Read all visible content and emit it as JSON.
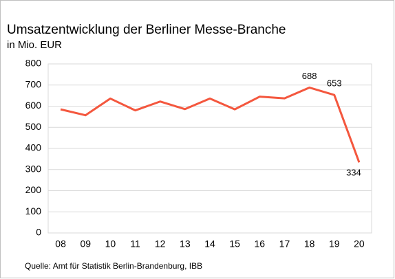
{
  "chart_data": {
    "type": "line",
    "title": "Umsatzentwicklung der Berliner Messe-Branche",
    "subtitle": "in Mio. EUR",
    "source": "Quelle: Amt für Statistik Berlin-Brandenburg, IBB",
    "categories": [
      "08",
      "09",
      "10",
      "11",
      "12",
      "13",
      "14",
      "15",
      "16",
      "17",
      "18",
      "19",
      "20"
    ],
    "values": [
      585,
      557,
      636,
      580,
      622,
      586,
      636,
      585,
      645,
      637,
      688,
      653,
      334
    ],
    "value_labels": [
      null,
      null,
      null,
      null,
      null,
      null,
      null,
      null,
      null,
      null,
      "688",
      "653",
      "334"
    ],
    "color": "#f4573e",
    "ylim": [
      0,
      800
    ],
    "yticks": [
      0,
      100,
      200,
      300,
      400,
      500,
      600,
      700,
      800
    ],
    "grid": true
  }
}
